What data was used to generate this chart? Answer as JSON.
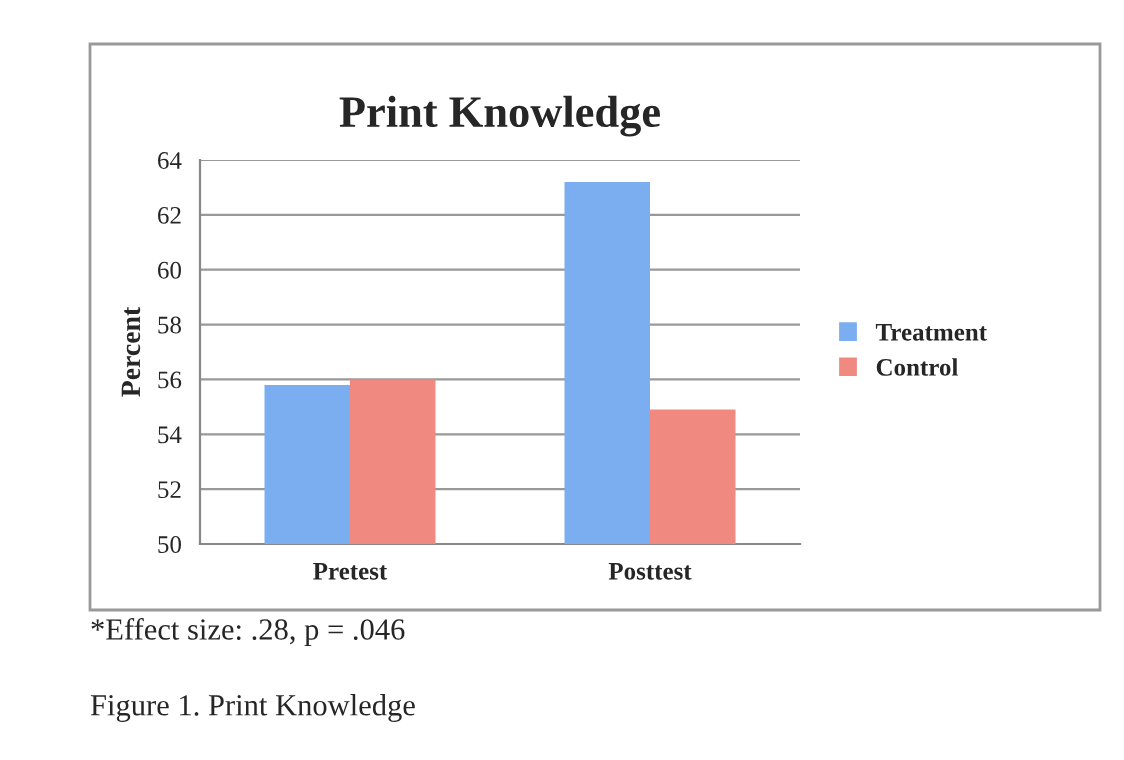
{
  "chart_data": {
    "type": "bar",
    "title": "Print Knowledge",
    "ylabel": "Percent",
    "categories": [
      "Pretest",
      "Posttest"
    ],
    "series": [
      {
        "name": "Treatment",
        "color": "#7aaef0",
        "values": [
          55.8,
          63.2
        ]
      },
      {
        "name": "Control",
        "color": "#f08a80",
        "values": [
          56.0,
          54.9
        ]
      }
    ],
    "ylim": [
      50,
      64
    ],
    "yticks": [
      50,
      52,
      54,
      56,
      58,
      60,
      62,
      64
    ],
    "grid": "y",
    "legend": "right",
    "annotations": [
      "*Effect size: .28, p = .046",
      "Figure 1. Print Knowledge"
    ]
  }
}
